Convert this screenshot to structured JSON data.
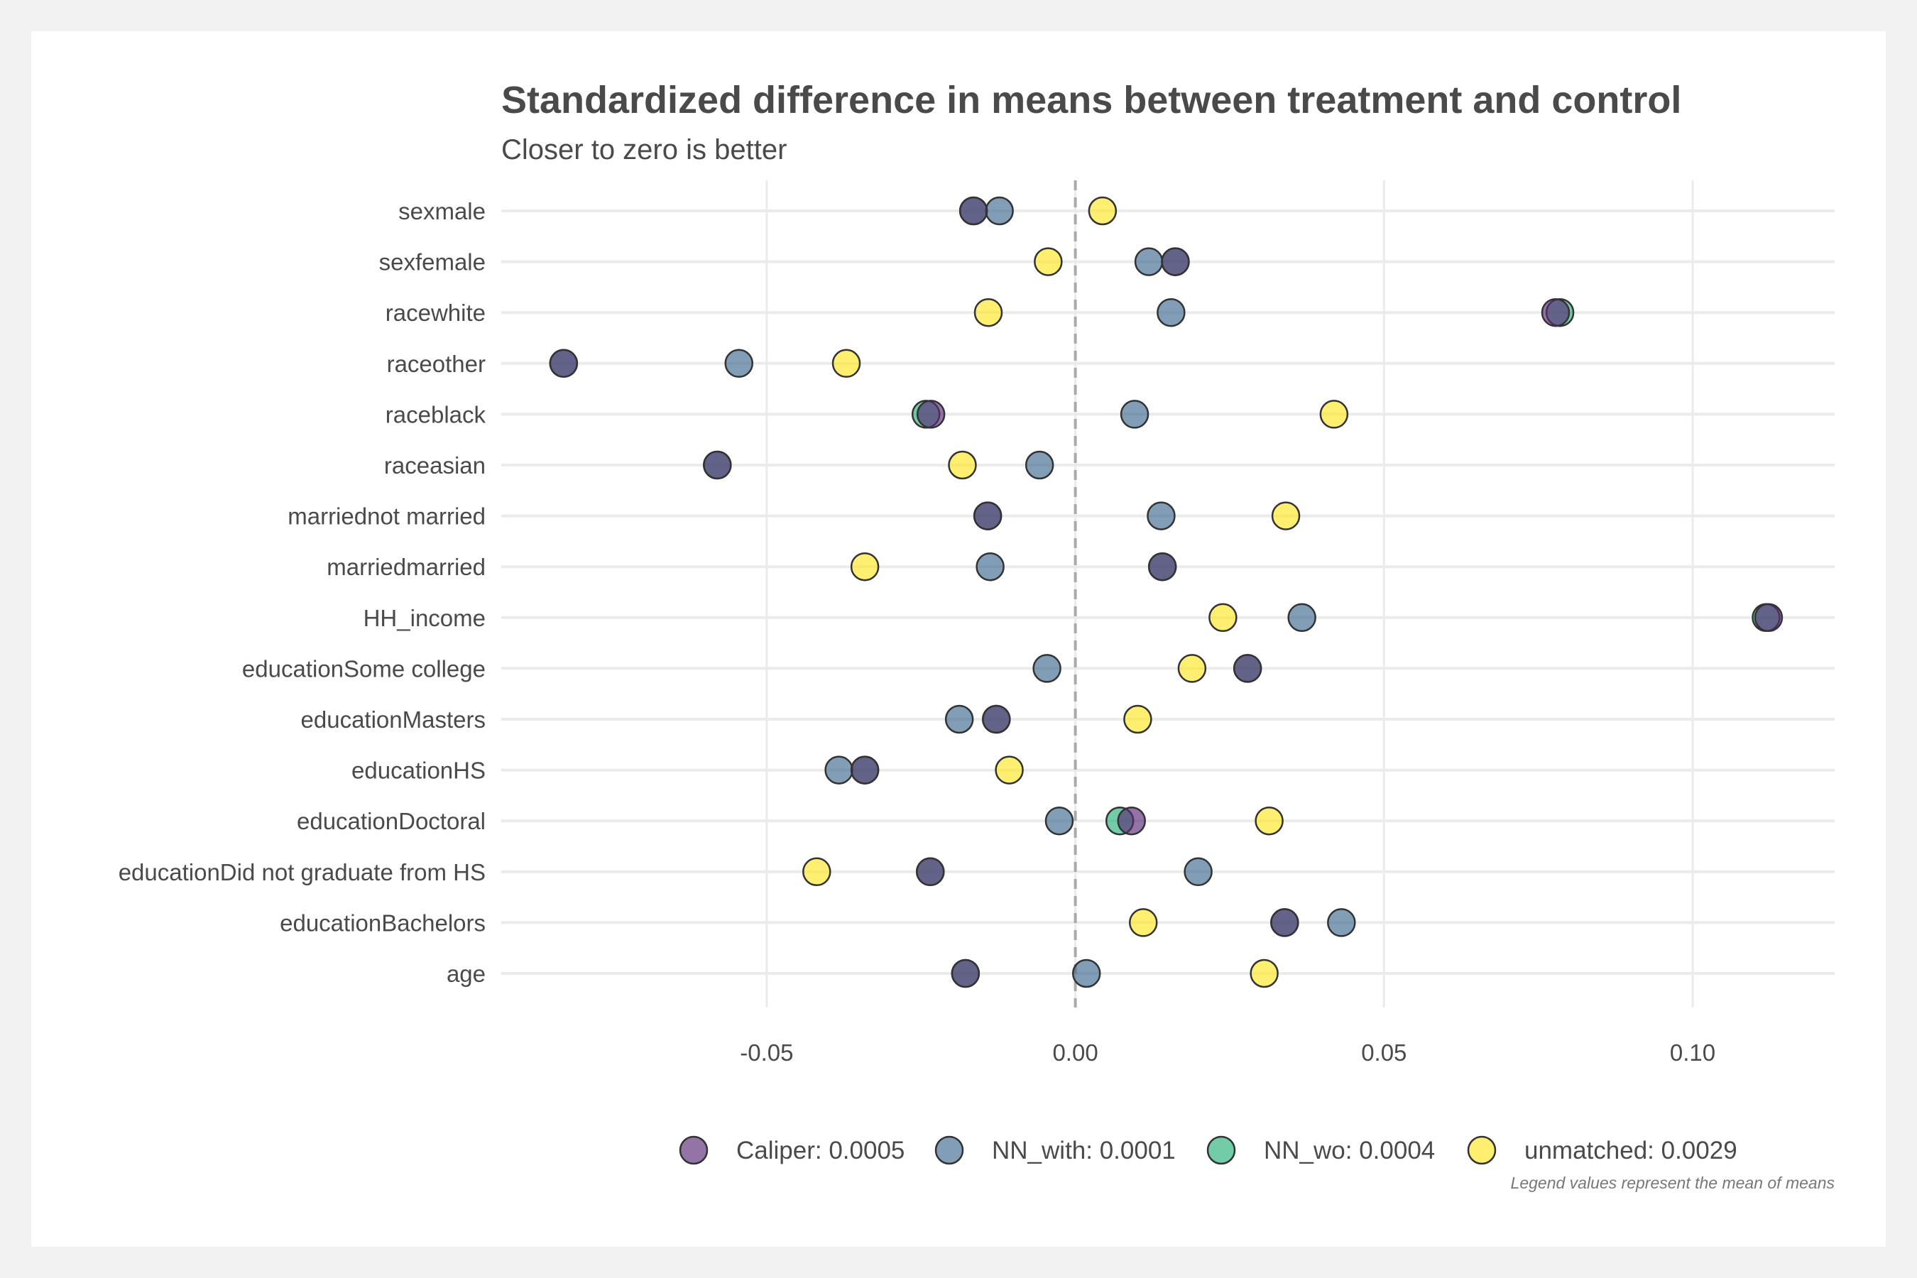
{
  "chart_data": {
    "type": "scatter",
    "title": "Standardized difference in means between treatment and control",
    "subtitle": "Closer to zero is better",
    "caption": "Legend values represent the mean of means",
    "xlim": [
      -0.093,
      0.123
    ],
    "x_ticks": [
      -0.05,
      0.0,
      0.05,
      0.1
    ],
    "x_tick_labels": [
      "-0.05",
      "0.00",
      "0.05",
      "0.10"
    ],
    "reference_line": 0,
    "grid": true,
    "legend_position": "bottom",
    "categories": [
      "sexmale",
      "sexfemale",
      "racewhite",
      "raceother",
      "raceblack",
      "raceasian",
      "marriednot married",
      "marriedmarried",
      "HH_income",
      "educationSome college",
      "educationMasters",
      "educationHS",
      "educationDoctoral",
      "educationDid not graduate from HS",
      "educationBachelors",
      "age"
    ],
    "series": [
      {
        "name": "Caliper: 0.0005",
        "color": "#5b2a77",
        "values": [
          -0.0165,
          0.0162,
          0.0778,
          -0.0829,
          -0.0234,
          -0.058,
          -0.0142,
          0.0141,
          0.1123,
          0.0279,
          -0.0128,
          -0.0341,
          0.0091,
          -0.0235,
          0.0339,
          -0.0178
        ]
      },
      {
        "name": "NN_with: 0.0001",
        "color": "#3d6a8f",
        "values": [
          -0.0123,
          0.0119,
          0.0155,
          -0.0545,
          0.0096,
          -0.0058,
          0.0139,
          -0.0138,
          0.0367,
          -0.0046,
          -0.0188,
          -0.0383,
          -0.0026,
          0.0199,
          0.0431,
          0.0018
        ]
      },
      {
        "name": "NN_wo: 0.0004",
        "color": "#27b07a",
        "values": [
          -0.0165,
          0.0162,
          0.0785,
          -0.0829,
          -0.0242,
          -0.058,
          -0.0142,
          0.0141,
          0.1119,
          0.0279,
          -0.0128,
          -0.0341,
          0.0072,
          -0.0235,
          0.0339,
          -0.0178
        ]
      },
      {
        "name": "unmatched: 0.0029",
        "color": "#fde725",
        "values": [
          0.0044,
          -0.0044,
          -0.0141,
          -0.0371,
          0.0419,
          -0.0183,
          0.0341,
          -0.0341,
          0.0239,
          0.0189,
          0.0101,
          -0.0107,
          0.0314,
          -0.0419,
          0.011,
          0.0306
        ]
      }
    ]
  }
}
